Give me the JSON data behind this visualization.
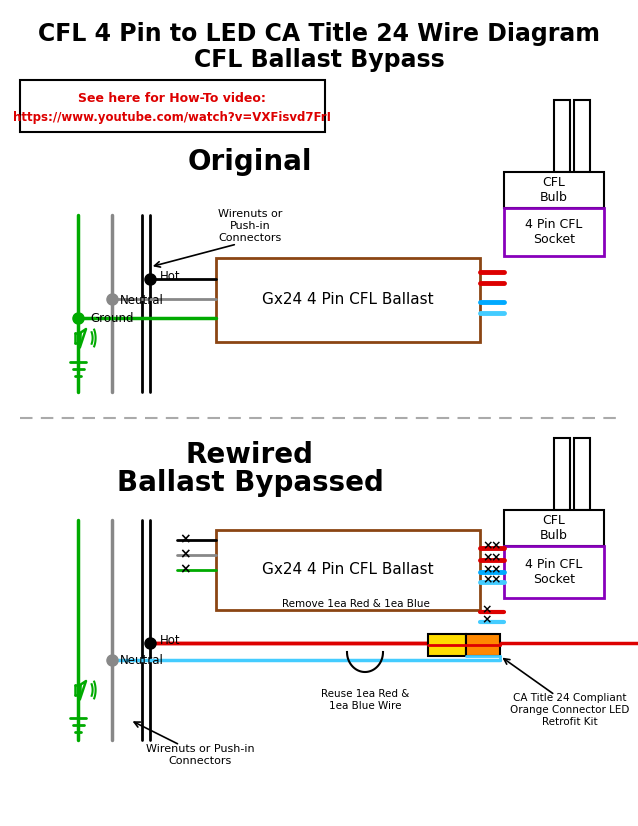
{
  "title_line1": "CFL 4 Pin to LED CA Title 24 Wire Diagram",
  "title_line2": "CFL Ballast Bypass",
  "url_text1": "See here for How-To video:",
  "url_text2": "https://www.youtube.com/watch?v=VXFisvd7FrI",
  "section1_title": "Original",
  "section2_title1": "Rewired",
  "section2_title2": "Ballast Bypassed",
  "ballast_label": "Gx24 4 Pin CFL Ballast",
  "socket_label": "4 Pin CFL\nSocket",
  "bulb_label": "CFL\nBulb",
  "hot_label": "Hot",
  "neutral_label": "Neutral",
  "ground_label": "Ground",
  "wirenuts1_label": "Wirenuts or\nPush-in\nConnectors",
  "wirenuts2_label": "Wirenuts or Push-in\nConnectors",
  "remove_label": "Remove 1ea Red & 1ea Blue",
  "reuse_label": "Reuse 1ea Red &\n1ea Blue Wire",
  "ca_label": "CA Title 24 Compliant\nOrange Connector LED\nRetrofit Kit",
  "bg_color": "#ffffff",
  "black_color": "#000000",
  "red_color": "#dd0000",
  "green_color": "#00aa00",
  "gray_color": "#888888",
  "brown_color": "#8B4513",
  "purple_color": "#8800bb",
  "blue_color": "#00aaff",
  "lightblue_color": "#44ccff",
  "orange_color": "#ff8800",
  "yellow_color": "#ffdd00",
  "dash_color": "#aaaaaa"
}
